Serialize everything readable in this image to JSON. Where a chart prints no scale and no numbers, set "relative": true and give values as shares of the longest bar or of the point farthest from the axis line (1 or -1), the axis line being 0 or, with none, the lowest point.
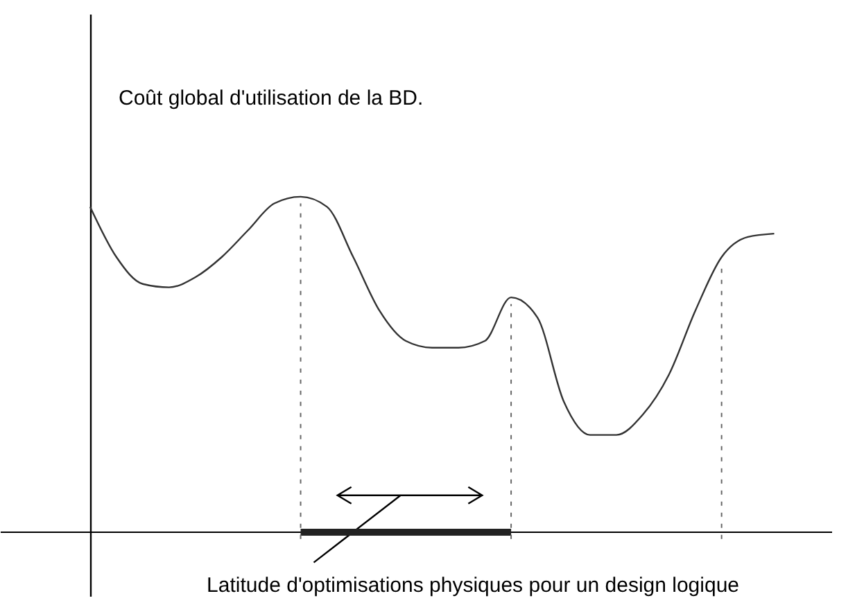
{
  "chart_data": {
    "type": "line",
    "relative": true,
    "ylabel": "Coût global d'utilisation de la BD.",
    "categories": [
      null,
      null,
      null,
      null,
      null,
      null,
      null,
      null,
      null,
      null,
      null,
      null,
      null,
      null,
      null,
      null,
      null,
      null,
      null,
      null,
      null,
      null,
      null,
      null,
      null,
      null,
      null
    ],
    "series": [
      {
        "color": "#333333",
        "values": [
          0.97,
          0.82,
          0.74,
          0.73,
          0.76,
          0.82,
          0.9,
          0.98,
          1,
          0.97,
          0.82,
          0.66,
          0.57,
          0.55,
          0.55,
          0.57,
          0.7,
          0.64,
          0.39,
          0.29,
          0.29,
          0.35,
          0.47,
          0.66,
          0.82,
          0.88,
          0.89
        ]
      }
    ],
    "annotations": [
      "Latitude d'optimisations physiques pour un design logique"
    ],
    "marker": "none",
    "line_style": "solid",
    "grid": "x"
  }
}
